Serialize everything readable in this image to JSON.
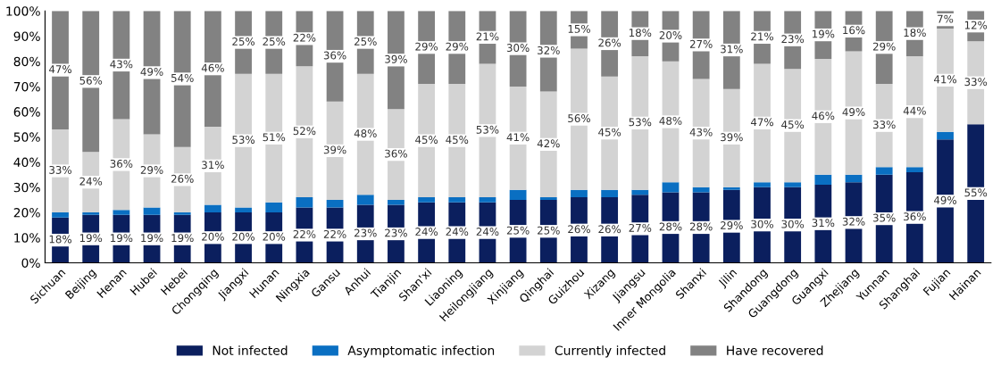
{
  "chart_data": {
    "type": "bar",
    "stacked": true,
    "categories": [
      "Sichuan",
      "Beijing",
      "Henan",
      "Hubei",
      "Hebei",
      "Chongqing",
      "Jiangxi",
      "Hunan",
      "Ningxia",
      "Gansu",
      "Anhui",
      "Tianjin",
      "Shan'xi",
      "Liaoning",
      "Heilongjiang",
      "Xinjiang",
      "Qinghai",
      "Guizhou",
      "Xizang",
      "Jiangsu",
      "Inner Mongolia",
      "Shanxi",
      "Jilin",
      "Shandong",
      "Guangdong",
      "Guangxi",
      "Zhejiang",
      "Yunnan",
      "Shanghai",
      "Fujian",
      "Hainan"
    ],
    "series": [
      {
        "name": "Not infected",
        "color": "#0b1f5e",
        "values": [
          18,
          19,
          19,
          19,
          19,
          20,
          20,
          20,
          22,
          22,
          23,
          23,
          24,
          24,
          24,
          25,
          25,
          26,
          26,
          27,
          28,
          28,
          29,
          30,
          30,
          31,
          32,
          35,
          36,
          49,
          55
        ],
        "value_labels": [
          "18%",
          "19%",
          "19%",
          "19%",
          "19%",
          "20%",
          "20%",
          "20%",
          "22%",
          "22%",
          "23%",
          "23%",
          "24%",
          "24%",
          "24%",
          "25%",
          "25%",
          "26%",
          "26%",
          "27%",
          "28%",
          "28%",
          "29%",
          "30%",
          "30%",
          "31%",
          "32%",
          "35%",
          "36%",
          "49%",
          "55%"
        ]
      },
      {
        "name": "Asymptomatic infection",
        "color": "#0a6fc2",
        "values": [
          2,
          1,
          2,
          3,
          1,
          3,
          2,
          4,
          4,
          3,
          4,
          2,
          2,
          2,
          2,
          4,
          1,
          3,
          3,
          2,
          4,
          2,
          1,
          2,
          2,
          4,
          3,
          3,
          2,
          3,
          0
        ]
      },
      {
        "name": "Currently infected",
        "color": "#d3d3d3",
        "values": [
          33,
          24,
          36,
          29,
          26,
          31,
          53,
          51,
          52,
          39,
          48,
          36,
          45,
          45,
          53,
          41,
          42,
          56,
          45,
          53,
          48,
          43,
          39,
          47,
          45,
          46,
          49,
          33,
          44,
          41,
          33
        ],
        "value_labels": [
          "33%",
          "24%",
          "36%",
          "29%",
          "26%",
          "31%",
          "53%",
          "51%",
          "52%",
          "39%",
          "48%",
          "36%",
          "45%",
          "45%",
          "53%",
          "41%",
          "42%",
          "56%",
          "45%",
          "53%",
          "48%",
          "43%",
          "39%",
          "47%",
          "45%",
          "46%",
          "49%",
          "33%",
          "44%",
          "41%",
          "33%"
        ]
      },
      {
        "name": "Have recovered",
        "color": "#828282",
        "values": [
          47,
          56,
          43,
          49,
          54,
          46,
          25,
          25,
          22,
          36,
          25,
          39,
          29,
          29,
          21,
          30,
          32,
          15,
          26,
          18,
          20,
          27,
          31,
          21,
          23,
          19,
          16,
          29,
          18,
          7,
          12
        ],
        "value_labels": [
          "47%",
          "56%",
          "43%",
          "49%",
          "54%",
          "46%",
          "25%",
          "25%",
          "22%",
          "36%",
          "25%",
          "39%",
          "29%",
          "29%",
          "21%",
          "30%",
          "32%",
          "15%",
          "26%",
          "18%",
          "20%",
          "27%",
          "31%",
          "21%",
          "23%",
          "19%",
          "16%",
          "29%",
          "18%",
          "7%",
          "12%"
        ]
      }
    ],
    "ylim": [
      0,
      100
    ],
    "yticks": [
      {
        "value": 0,
        "label": "0%"
      },
      {
        "value": 10,
        "label": "10%"
      },
      {
        "value": 20,
        "label": "20%"
      },
      {
        "value": 30,
        "label": "30%"
      },
      {
        "value": 40,
        "label": "40%"
      },
      {
        "value": 50,
        "label": "50%"
      },
      {
        "value": 60,
        "label": "60%"
      },
      {
        "value": 70,
        "label": "70%"
      },
      {
        "value": 80,
        "label": "80%"
      },
      {
        "value": 90,
        "label": "90%"
      },
      {
        "value": 100,
        "label": "100%"
      }
    ],
    "grid": false,
    "legend": "bottom"
  }
}
